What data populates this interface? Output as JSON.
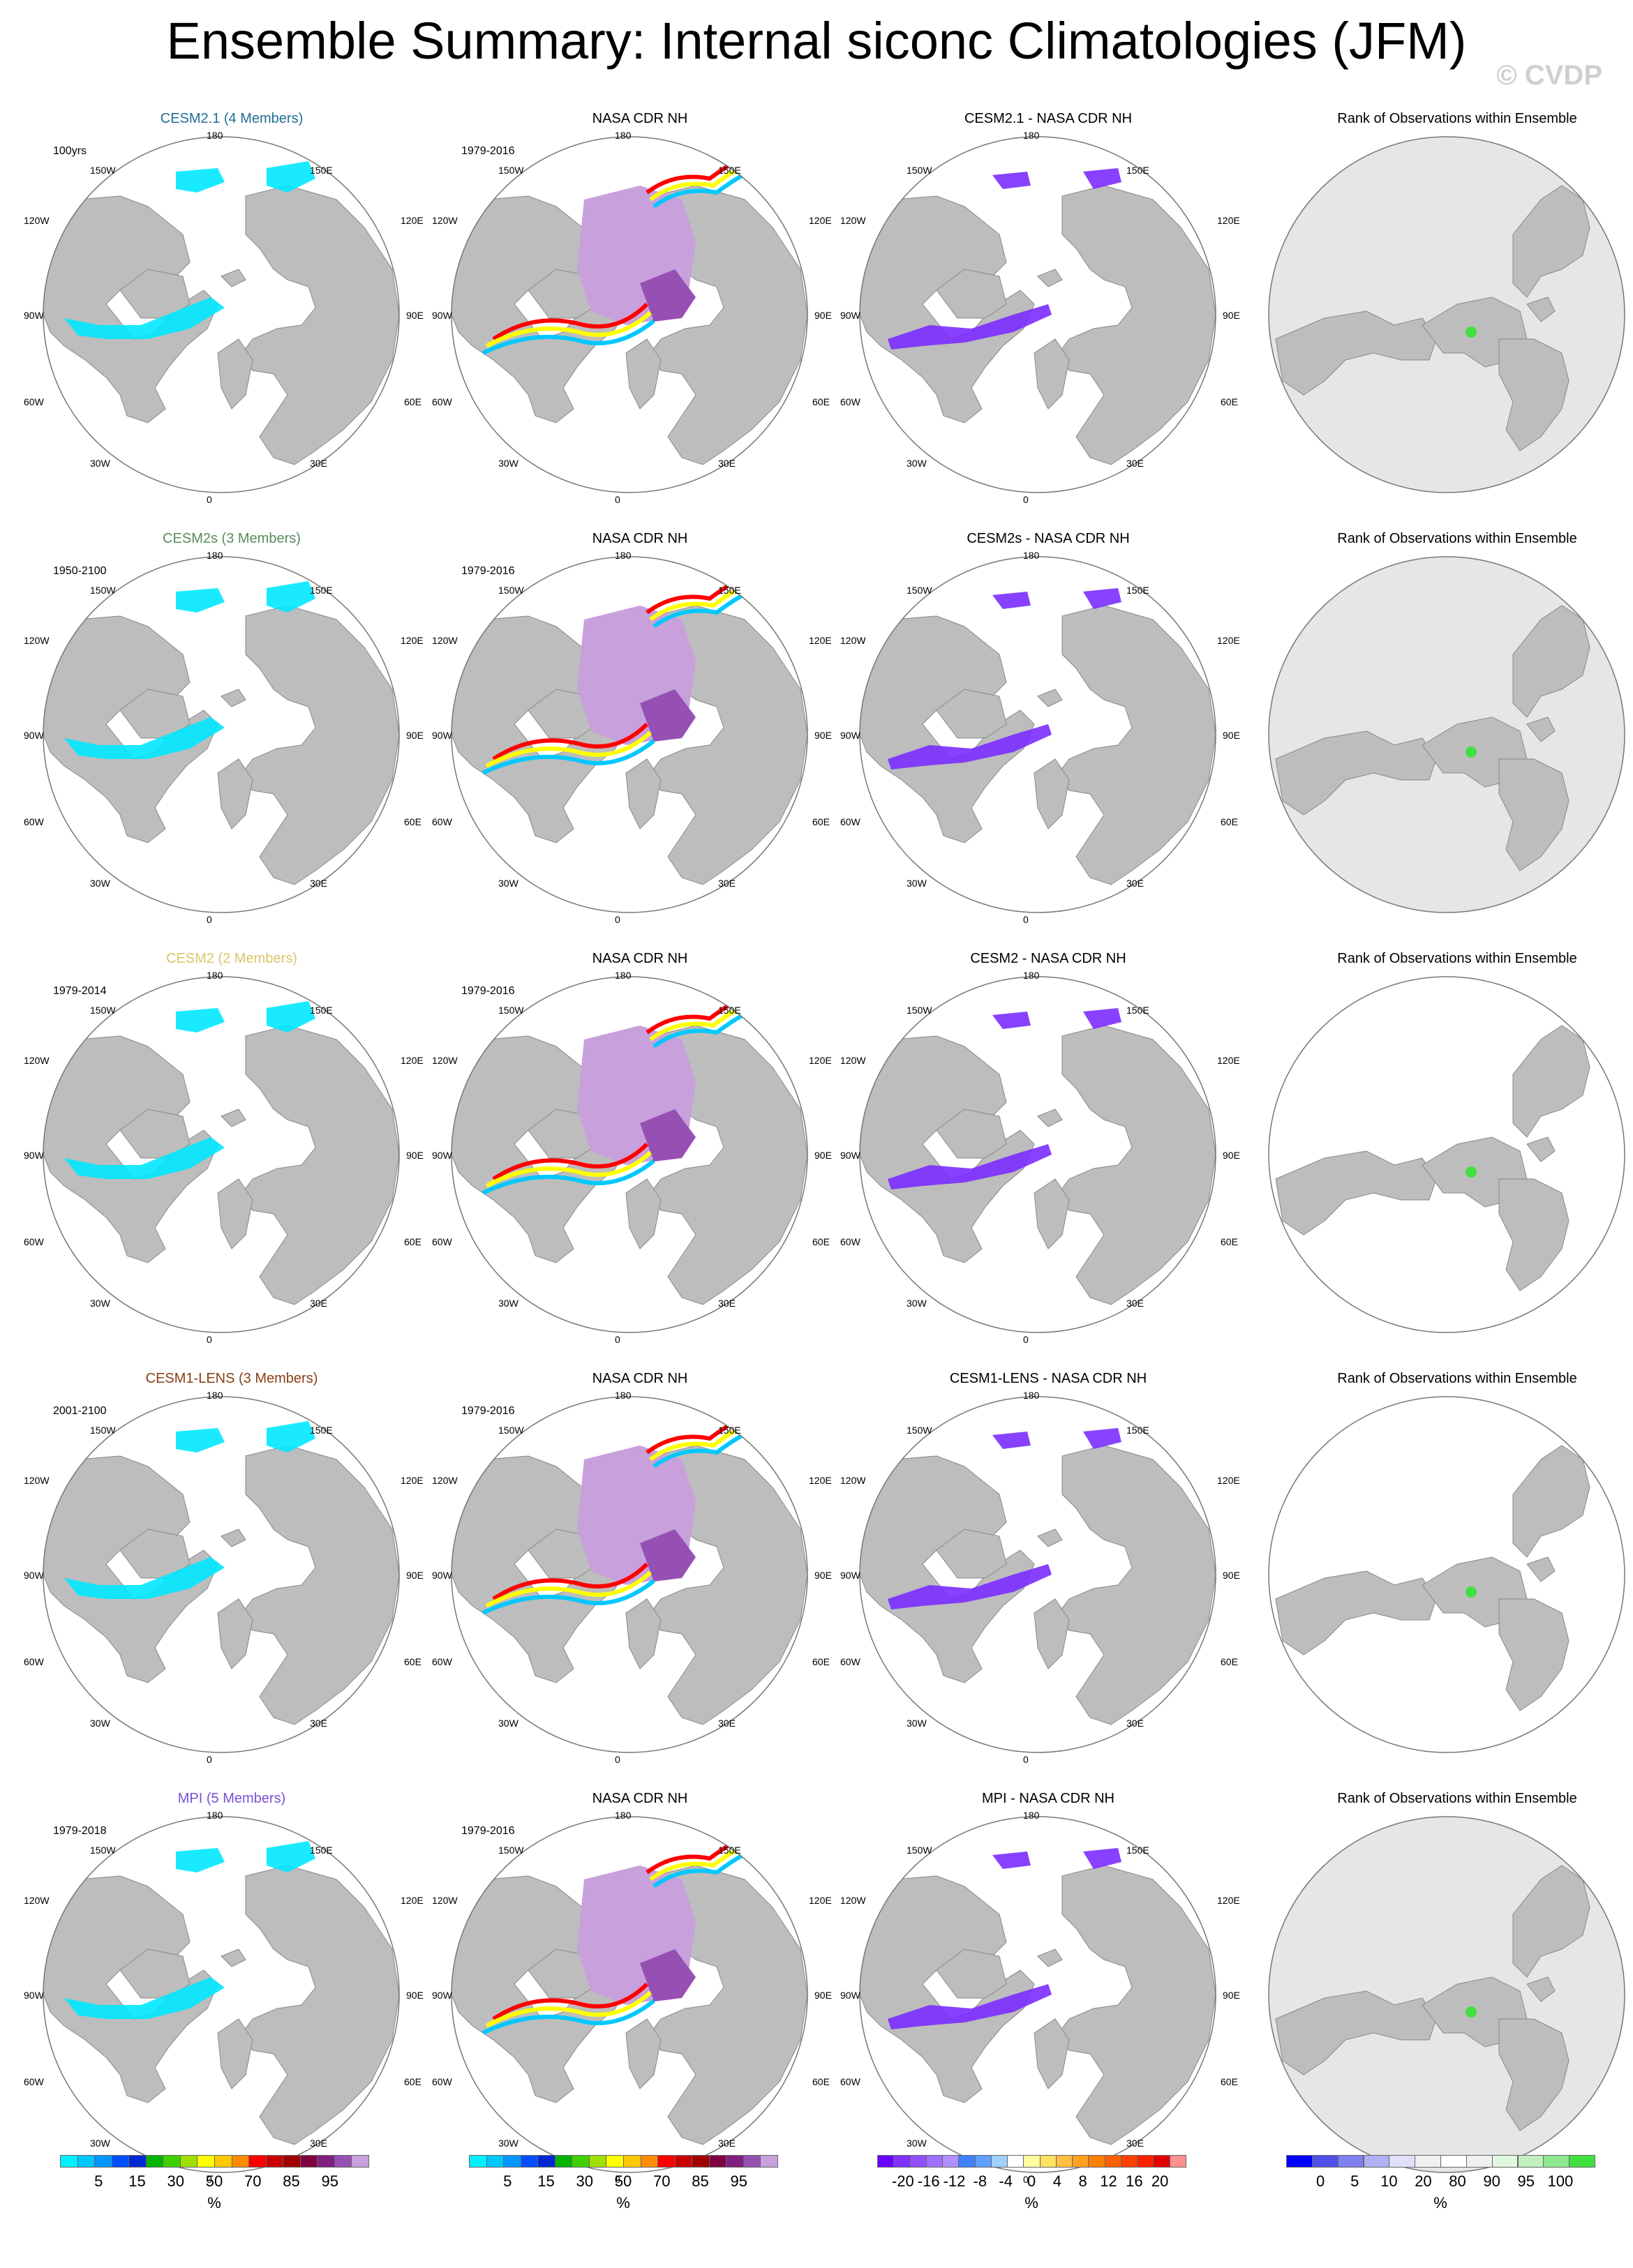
{
  "title": "Ensemble Summary: Internal siconc Climatologies (JFM)",
  "watermark": "© CVDP",
  "map_labels": {
    "top": "180",
    "bottom": "0",
    "left_upper": "120W",
    "left_mid": "90W",
    "left_lower": "60W",
    "right_upper": "120E",
    "right_mid": "90E",
    "right_lower": "60E",
    "tl": "150W",
    "tr": "150E",
    "bl": "30W",
    "br": "30E"
  },
  "rows": [
    {
      "model": {
        "title": "CESM2.1 (4 Members)",
        "color": "#1f6e93",
        "period": "100yrs"
      },
      "obs": {
        "title": "NASA CDR NH",
        "period": "1979-2016"
      },
      "diff": {
        "title": "CESM2.1 - NASA CDR NH"
      },
      "rank": {
        "title": "Rank of Observations within Ensemble",
        "background": "#e6e6e6"
      }
    },
    {
      "model": {
        "title": "CESM2s (3 Members)",
        "color": "#5a8a5a",
        "period": "1950-2100"
      },
      "obs": {
        "title": "NASA CDR NH",
        "period": "1979-2016"
      },
      "diff": {
        "title": "CESM2s - NASA CDR NH"
      },
      "rank": {
        "title": "Rank of Observations within Ensemble",
        "background": "#e6e6e6"
      }
    },
    {
      "model": {
        "title": "CESM2 (2 Members)",
        "color": "#d9c66a",
        "period": "1979-2014"
      },
      "obs": {
        "title": "NASA CDR NH",
        "period": "1979-2016"
      },
      "diff": {
        "title": "CESM2 - NASA CDR NH"
      },
      "rank": {
        "title": "Rank of Observations within Ensemble",
        "background": "#ffffff"
      }
    },
    {
      "model": {
        "title": "CESM1-LENS (3 Members)",
        "color": "#8a3c14",
        "period": "2001-2100"
      },
      "obs": {
        "title": "NASA CDR NH",
        "period": "1979-2016"
      },
      "diff": {
        "title": "CESM1-LENS - NASA CDR NH"
      },
      "rank": {
        "title": "Rank of Observations within Ensemble",
        "background": "#ffffff"
      }
    },
    {
      "model": {
        "title": "MPI (5 Members)",
        "color": "#7a52d6",
        "period": "1979-2018"
      },
      "obs": {
        "title": "NASA CDR NH",
        "period": "1979-2016"
      },
      "diff": {
        "title": "MPI - NASA CDR NH"
      },
      "rank": {
        "title": "Rank of Observations within Ensemble",
        "background": "#e6e6e6"
      }
    }
  ],
  "colorbars": {
    "concentration": {
      "colors": [
        "#00f0ff",
        "#00c8ff",
        "#0096ff",
        "#0050ff",
        "#0028d0",
        "#00b400",
        "#40d000",
        "#a0e000",
        "#ffff00",
        "#ffc800",
        "#ff8c00",
        "#ff0000",
        "#c80000",
        "#a00000",
        "#800040",
        "#802080",
        "#9650b4",
        "#c8a0dc"
      ],
      "ticks": [
        "5",
        "15",
        "30",
        "50",
        "70",
        "85",
        "95"
      ],
      "unit": "%"
    },
    "difference": {
      "colors": [
        "#6a00ff",
        "#8030ff",
        "#9050ff",
        "#a070ff",
        "#b090ff",
        "#4080ff",
        "#60a0ff",
        "#a0d0ff",
        "#ffffff",
        "#ffffa0",
        "#ffe060",
        "#ffc040",
        "#ffa020",
        "#ff8000",
        "#ff6000",
        "#ff4000",
        "#ff2000",
        "#e00000",
        "#ff9090"
      ],
      "ticks": [
        "-20",
        "-16",
        "-12",
        "-8",
        "-4",
        "0",
        "4",
        "8",
        "12",
        "16",
        "20"
      ],
      "unit": "%"
    },
    "rank": {
      "colors": [
        "#0000ff",
        "#5050e8",
        "#8080f0",
        "#b0b0f4",
        "#e0e0f8",
        "#f0f0f0",
        "#ffffff",
        "#f0f0f0",
        "#e0f8e0",
        "#c0f0c0",
        "#90e890",
        "#40e040"
      ],
      "ticks": [
        "0",
        "5",
        "10",
        "20",
        "80",
        "90",
        "95",
        "100"
      ],
      "unit": "%"
    }
  }
}
